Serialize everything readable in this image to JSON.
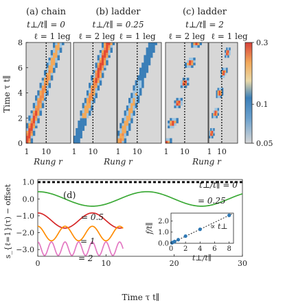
{
  "chart_data": [
    {
      "type": "heatmap",
      "panels": [
        {
          "title": "(a) chain",
          "subtitle": "t⊥/t∥ = 0",
          "leg_label": "ℓ = 1 leg",
          "feature": "single light cone from r=1, velocity ~ 1.9 rungs per unit time (reaches r≈15 at τ=8)"
        },
        {
          "title": "(b) ladder",
          "subtitle": "t⊥/t∥ = 0.25",
          "leg_labels": [
            "ℓ = 2 leg",
            "ℓ = 1 leg"
          ],
          "feature": "light cone on both legs, weak in ℓ=2 early and strong late"
        },
        {
          "title": "(c) ladder",
          "subtitle": "t⊥/t∥ = 2",
          "leg_labels": [
            "ℓ = 2 leg",
            "ℓ = 1 leg"
          ],
          "feature": "wave packet oscillating between legs with period ~1.6"
        }
      ],
      "ylabel": "Time τ t∥",
      "xlabel": "Rung r",
      "ylim": [
        0,
        8
      ],
      "yticks": [
        0,
        2,
        4,
        6,
        8
      ],
      "xtick_labels": [
        "1",
        "10"
      ],
      "reference_line": "dotted vertical line at r = 10",
      "colorbar": {
        "scale": "log",
        "ticks": [
          0.05,
          0.1,
          0.3
        ],
        "tick_labels": [
          "0.05",
          "0.1",
          "0.3"
        ],
        "range": [
          0.05,
          0.3
        ],
        "colors": [
          "#d3d3d3",
          "#3b7fb8",
          "#f2a95a",
          "#e34a33"
        ]
      }
    },
    {
      "type": "line",
      "panel_label": "(d)",
      "xlabel": "Time τ t∥",
      "ylabel": "s_{ℓ=1}(τ) − offset",
      "xlim": [
        0,
        30
      ],
      "ylim": [
        -3.4,
        1.15
      ],
      "xticks": [
        0,
        10,
        20,
        30
      ],
      "yticks": [
        -3.0,
        -2.0,
        -1.0,
        0.0,
        1.0
      ],
      "ytick_labels": [
        "−3.0",
        "−2.0",
        "−1.0",
        "0.0",
        "1.0"
      ],
      "series": [
        {
          "name": "t⊥/t∥ = 0",
          "color": "#111111",
          "dashed": true,
          "offset": 1.0,
          "amplitude": 0.0,
          "freq": 0.0,
          "tmax": 30
        },
        {
          "name": "= 0.25",
          "color": "#3aa935",
          "offset": 0.0,
          "amplitude": 0.43,
          "freq": 0.0625,
          "tmax": 30
        },
        {
          "name": "= 0.5",
          "color": "#d62728",
          "offset": -1.28,
          "amplitude": 0.45,
          "freq": 0.125,
          "tmax": 12.5
        },
        {
          "name": "= 1",
          "color": "#ff8c00",
          "offset": -2.05,
          "amplitude": 0.43,
          "freq": 0.25,
          "tmax": 12.5
        },
        {
          "name": "= 2",
          "color": "#e377c2",
          "offset": -2.95,
          "amplitude": 0.4,
          "freq": 0.5,
          "tmax": 12.5
        }
      ],
      "inset": {
        "type": "scatter",
        "xlabel": "t⊥/t∥",
        "ylabel": "f/t∥",
        "xlim": [
          0,
          8.6
        ],
        "ylim": [
          0,
          2.7
        ],
        "xticks": [
          0,
          2,
          4,
          6,
          8
        ],
        "yticks": [
          0.0,
          1.0,
          2.0
        ],
        "ytick_labels": [
          "0.0",
          "1.0",
          "2.0"
        ],
        "x": [
          0.125,
          0.25,
          0.5,
          1,
          2,
          4,
          8
        ],
        "y": [
          0.04,
          0.08,
          0.16,
          0.32,
          0.64,
          1.25,
          2.5
        ],
        "fit_label": "∝ t⊥",
        "color": "#2f79b5"
      }
    }
  ]
}
